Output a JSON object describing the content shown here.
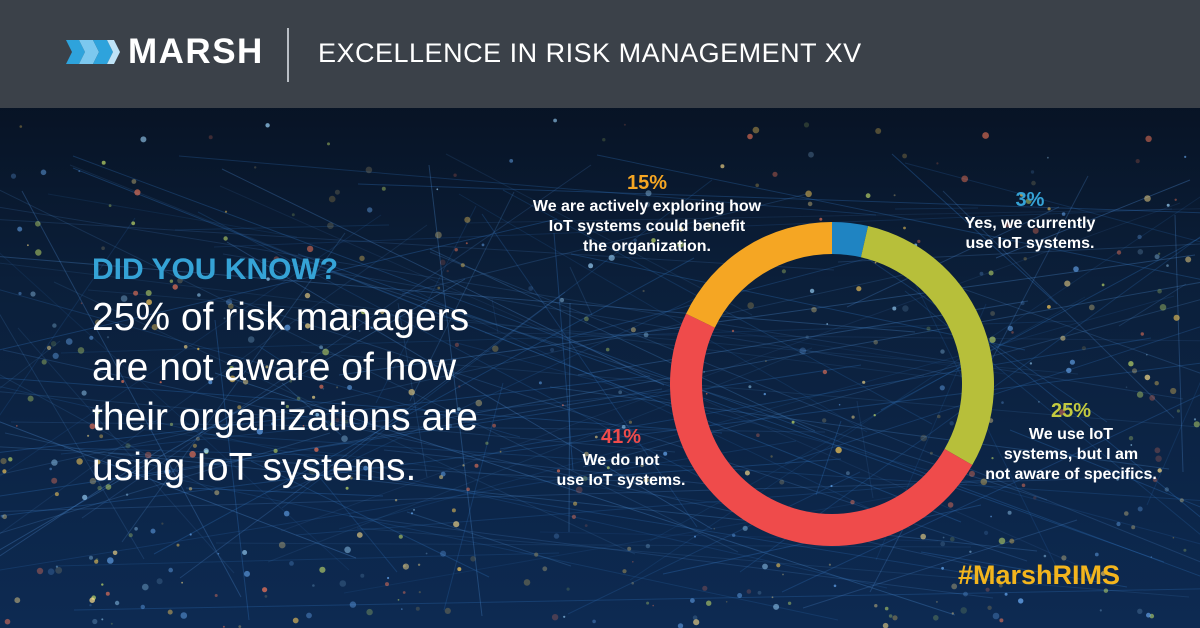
{
  "header": {
    "brand": "MARSH",
    "title": "EXCELLENCE IN RISK MANAGEMENT XV"
  },
  "headline": {
    "kicker": "DID YOU KNOW?",
    "fact": "25% of risk managers are not aware of how their organizations are using IoT systems."
  },
  "hashtag": "#MarshRIMS",
  "colors": {
    "header_bg": "#3b4149",
    "blue": "#1f84c2",
    "olive": "#b7bf3a",
    "red": "#ef4b4b",
    "orange": "#f5a623",
    "hashtag": "#f3b51d"
  },
  "chart_data": {
    "type": "pie",
    "style": "donut",
    "title": "",
    "slices": [
      {
        "value": 3,
        "label": "3%",
        "caption": [
          "Yes, we currently",
          "use IoT systems."
        ],
        "color": "#1f84c2",
        "label_color": "#35a3d6"
      },
      {
        "value": 25,
        "label": "25%",
        "caption": [
          "We use IoT",
          "systems, but I am",
          "not aware of specifics."
        ],
        "color": "#b7bf3a",
        "label_color": "#c3ca3f"
      },
      {
        "value": 41,
        "label": "41%",
        "caption": [
          "We do not",
          "use IoT systems."
        ],
        "color": "#ef4b4b",
        "label_color": "#ef4b4b"
      },
      {
        "value": 15,
        "label": "15%",
        "caption": [
          "We are actively exploring how",
          "IoT systems could benefit",
          "the organization."
        ],
        "color": "#f5a623",
        "label_color": "#f5a623"
      }
    ]
  }
}
